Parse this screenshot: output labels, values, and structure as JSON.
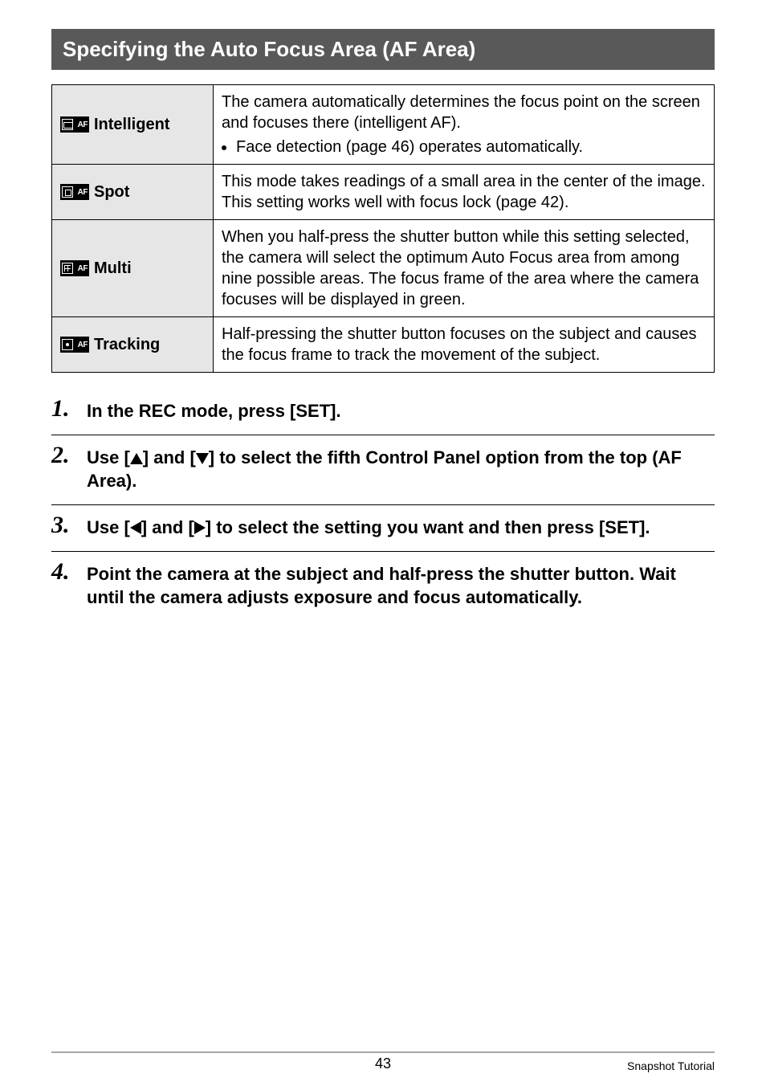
{
  "section_bar": {
    "title": "Specifying the Auto Focus Area (AF Area)",
    "bg_color": "#595959",
    "text_color": "#ffffff"
  },
  "table": {
    "border_color": "#000000",
    "label_bg": "#e6e6e6",
    "desc_fontsize": 20,
    "rows": [
      {
        "icon_name": "intelligent-af-icon",
        "icon_af_text": "AF",
        "label": "Intelligent",
        "desc_main": "The camera automatically determines the focus point on the screen and focuses there (intelligent AF).",
        "bullet": "Face detection (page 46) operates automatically."
      },
      {
        "icon_name": "spot-af-icon",
        "icon_af_text": "AF",
        "label": "Spot",
        "desc_main": "This mode takes readings of a small area in the center of the image. This setting works well with focus lock (page 42).",
        "bullet": null
      },
      {
        "icon_name": "multi-af-icon",
        "icon_af_text": "AF",
        "label": "Multi",
        "desc_main": "When you half-press the shutter button while this setting selected, the camera will select the optimum Auto Focus area from among nine possible areas. The focus frame of the area where the camera focuses will be displayed in green.",
        "bullet": null
      },
      {
        "icon_name": "tracking-af-icon",
        "icon_af_text": "AF",
        "label": "Tracking",
        "desc_main": "Half-pressing the shutter button focuses on the subject and causes the focus frame to track the movement of the subject.",
        "bullet": null
      }
    ]
  },
  "steps": [
    {
      "num": "1.",
      "text_before": "In the REC mode, press [SET]."
    },
    {
      "num": "2.",
      "text_parts": [
        "Use [",
        "UP",
        "] and [",
        "DOWN",
        "] to select the fifth Control Panel option from the top (AF Area)."
      ]
    },
    {
      "num": "3.",
      "text_parts": [
        "Use [",
        "LEFT",
        "] and [",
        "RIGHT",
        "] to select the setting you want and then press [SET]."
      ]
    },
    {
      "num": "4.",
      "text_before": "Point the camera at the subject and half-press the shutter button. Wait until the camera adjusts exposure and focus automatically."
    }
  ],
  "footer": {
    "page_number": "43",
    "section_name": "Snapshot Tutorial",
    "divider_color": "#a6a6a6"
  }
}
